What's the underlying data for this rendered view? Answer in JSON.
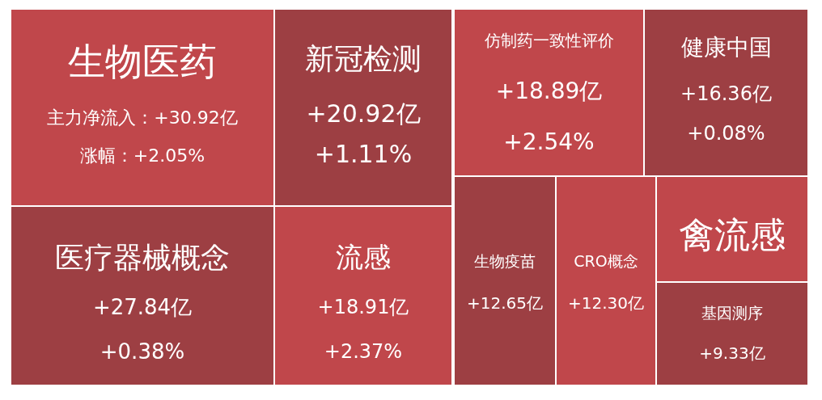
{
  "chart_data": {
    "type": "other",
    "categories": [
      "生物医药",
      "新冠检测",
      "仿制药一致性评价",
      "健康中国",
      "医疗器械概念",
      "流感",
      "生物疫苗",
      "CRO概念",
      "禽流感",
      "基因测序"
    ],
    "series": [
      {
        "name": "主力净流入：",
        "colors": [
          "#c0474b",
          "#9d3f43",
          "#c0474b",
          "#9d3f43",
          "#9d3f43",
          "#c0474b",
          "#9d3f43",
          "#c0474b",
          "#c0474b",
          "#9d3f43"
        ],
        "values": [
          30.92,
          20.92,
          18.89,
          16.36,
          27.84,
          18.91,
          12.65,
          12.3,
          null,
          9.33
        ],
        "value_labels": [
          "+30.92亿",
          "+20.92亿",
          "+18.89亿",
          "+16.36亿",
          "+27.84亿",
          "+18.91亿",
          "+12.65亿",
          "+12.30亿",
          null,
          "+9.33亿"
        ]
      },
      {
        "name": "涨幅：",
        "values": [
          2.05,
          1.11,
          2.54,
          0.08,
          0.38,
          2.37,
          null,
          null,
          null,
          null
        ],
        "value_labels": [
          "+2.05%",
          "+1.11%",
          "+2.54%",
          "+0.08%",
          "+0.38%",
          "+2.37%",
          null,
          null,
          null,
          null
        ]
      }
    ]
  }
}
